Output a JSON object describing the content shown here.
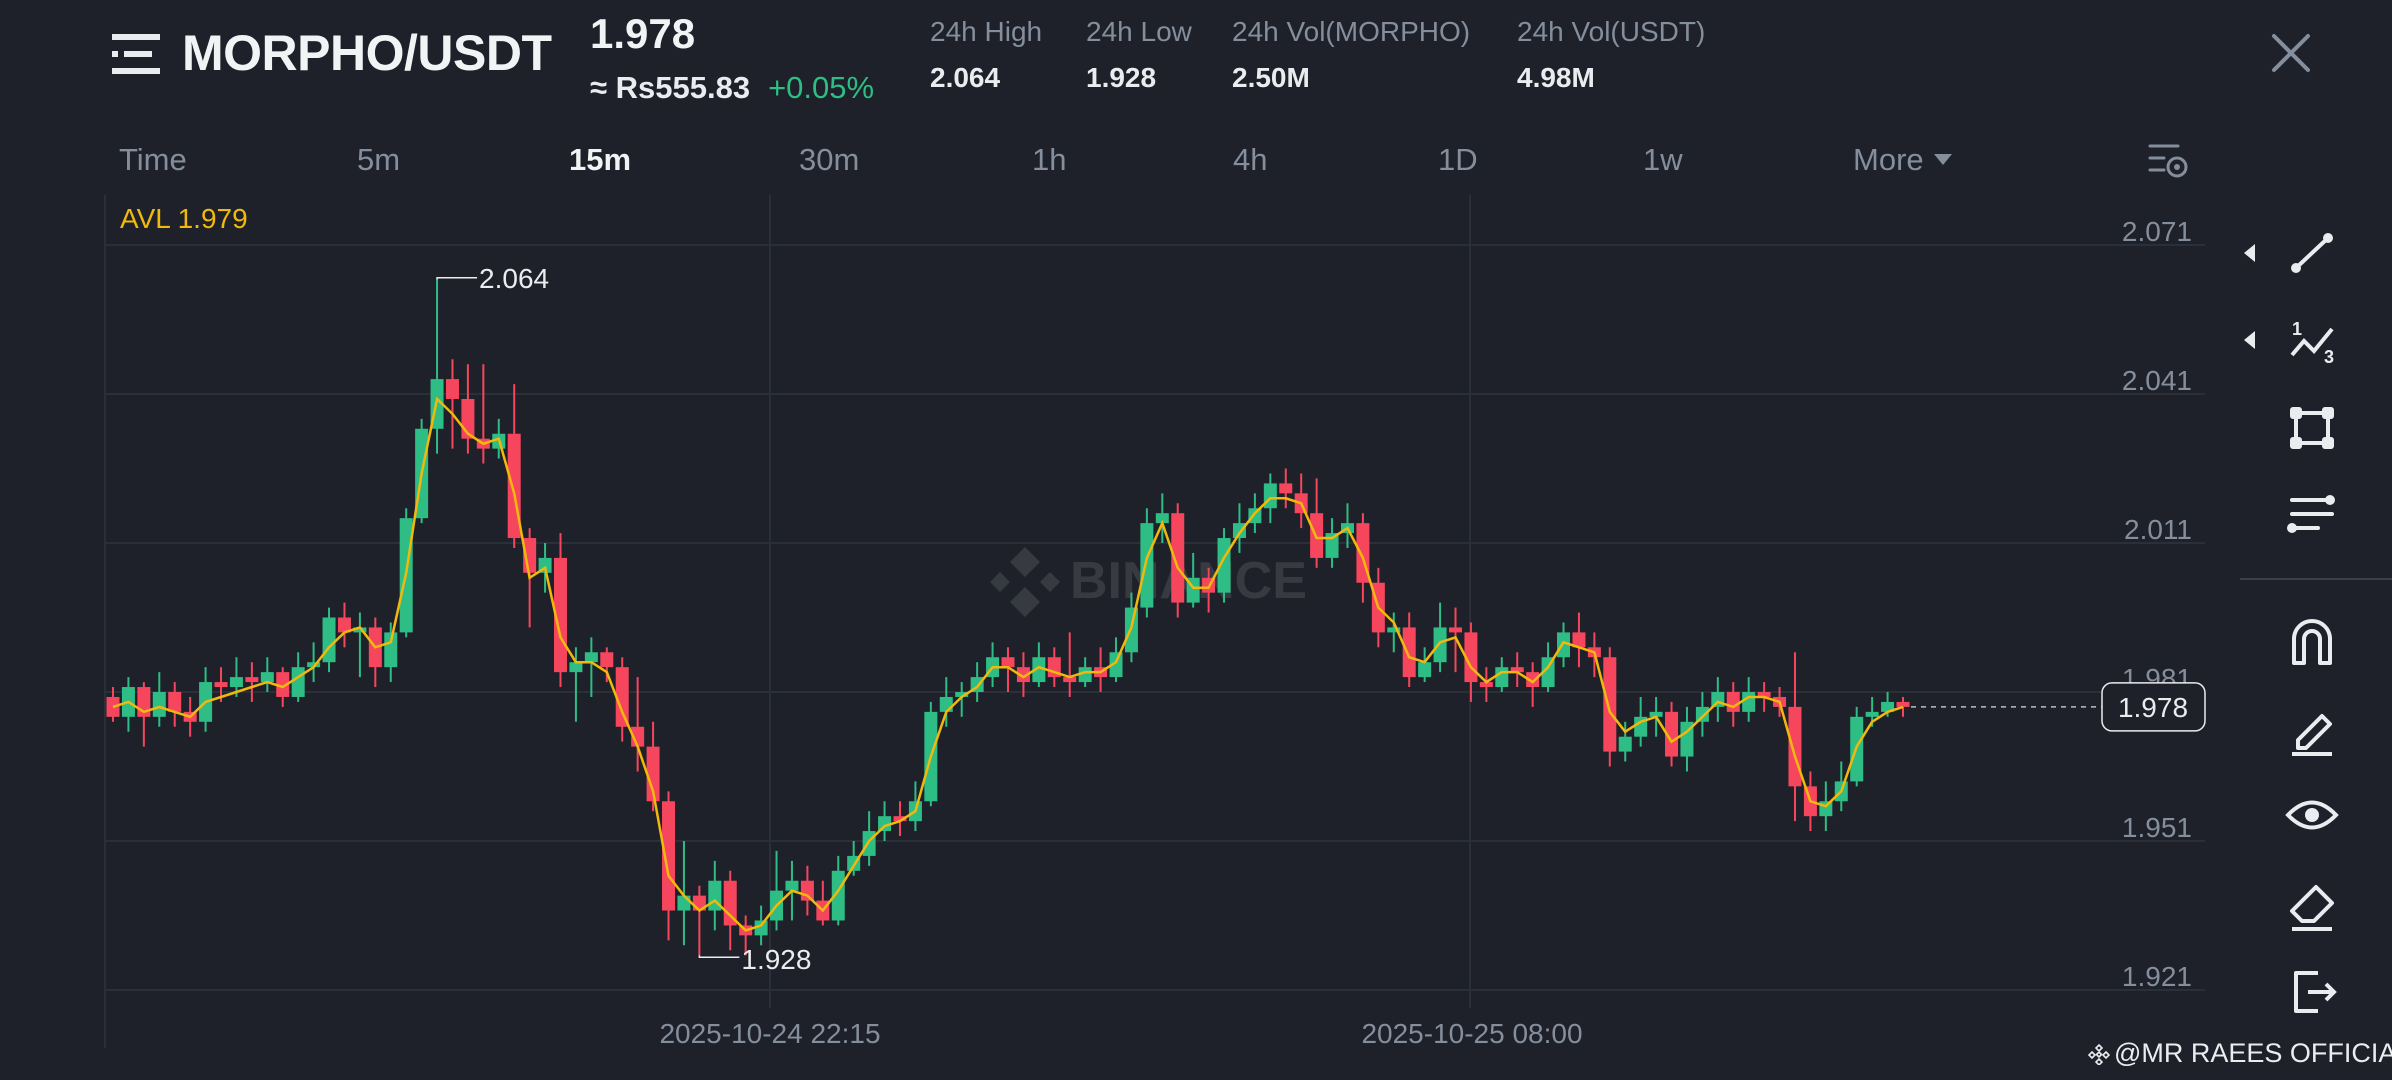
{
  "header": {
    "pair": "MORPHO/USDT",
    "last_price": "1.978",
    "fiat_price": "≈ Rs555.83",
    "change": "+0.05%",
    "stats": [
      {
        "label": "24h High",
        "value": "2.064"
      },
      {
        "label": "24h Low",
        "value": "1.928"
      },
      {
        "label": "24h Vol(MORPHO)",
        "value": "2.50M"
      },
      {
        "label": "24h Vol(USDT)",
        "value": "4.98M"
      }
    ]
  },
  "tabs": [
    "Time",
    "5m",
    "15m",
    "30m",
    "1h",
    "4h",
    "1D",
    "1w",
    "More"
  ],
  "active_tab": "15m",
  "avl_label": "AVL 1.979",
  "watermark": "BINANCE",
  "credit": "@MR RAEES OFFICIAL",
  "colors": {
    "bg": "#1e2129",
    "up": "#2ebd85",
    "down": "#f6465d",
    "ma": "#f0b90b",
    "grid": "#2b2f38",
    "axis_text": "#848e9c"
  },
  "icons": [
    "trend-line-icon",
    "fibonacci-icon",
    "rectangle-icon",
    "parallel-lines-icon",
    "magnet-icon",
    "pencil-icon",
    "eye-icon",
    "eraser-icon",
    "exit-icon"
  ],
  "chart_data": {
    "type": "candlestick",
    "interval": "15m",
    "y_ticks": [
      "2.071",
      "2.041",
      "2.011",
      "1.981",
      "1.951",
      "1.921"
    ],
    "ylim": [
      1.921,
      2.071
    ],
    "x_labels": [
      "2025-10-24 22:15",
      "2025-10-25 08:00"
    ],
    "high_marker": "2.064",
    "low_marker": "1.928",
    "current_price": "1.978",
    "candles": [
      [
        1.98,
        1.976,
        1.982,
        1.975
      ],
      [
        1.976,
        1.982,
        1.984,
        1.973
      ],
      [
        1.982,
        1.976,
        1.983,
        1.97
      ],
      [
        1.976,
        1.981,
        1.985,
        1.974
      ],
      [
        1.981,
        1.977,
        1.983,
        1.974
      ],
      [
        1.977,
        1.975,
        1.98,
        1.972
      ],
      [
        1.975,
        1.983,
        1.986,
        1.973
      ],
      [
        1.983,
        1.982,
        1.986,
        1.979
      ],
      [
        1.982,
        1.984,
        1.988,
        1.98
      ],
      [
        1.984,
        1.983,
        1.987,
        1.979
      ],
      [
        1.983,
        1.985,
        1.988,
        1.981
      ],
      [
        1.985,
        1.98,
        1.986,
        1.978
      ],
      [
        1.98,
        1.986,
        1.989,
        1.979
      ],
      [
        1.986,
        1.987,
        1.991,
        1.983
      ],
      [
        1.987,
        1.996,
        1.998,
        1.985
      ],
      [
        1.996,
        1.993,
        1.999,
        1.99
      ],
      [
        1.993,
        1.994,
        1.997,
        1.984
      ],
      [
        1.994,
        1.986,
        1.996,
        1.982
      ],
      [
        1.986,
        1.993,
        1.995,
        1.983
      ],
      [
        1.993,
        2.016,
        2.018,
        1.992
      ],
      [
        2.016,
        2.034,
        2.036,
        2.015
      ],
      [
        2.034,
        2.044,
        2.064,
        2.029
      ],
      [
        2.044,
        2.04,
        2.048,
        2.03
      ],
      [
        2.04,
        2.032,
        2.047,
        2.029
      ],
      [
        2.032,
        2.03,
        2.047,
        2.027
      ],
      [
        2.03,
        2.033,
        2.036,
        2.028
      ],
      [
        2.033,
        2.012,
        2.043,
        2.01
      ],
      [
        2.012,
        2.005,
        2.014,
        1.994
      ],
      [
        2.005,
        2.008,
        2.011,
        2.001
      ],
      [
        2.008,
        1.985,
        2.013,
        1.982
      ],
      [
        1.985,
        1.987,
        1.99,
        1.975
      ],
      [
        1.987,
        1.989,
        1.992,
        1.98
      ],
      [
        1.989,
        1.986,
        1.99,
        1.983
      ],
      [
        1.986,
        1.974,
        1.988,
        1.971
      ],
      [
        1.974,
        1.97,
        1.984,
        1.965
      ],
      [
        1.97,
        1.959,
        1.975,
        1.957
      ],
      [
        1.959,
        1.937,
        1.961,
        1.931
      ],
      [
        1.937,
        1.94,
        1.951,
        1.93
      ],
      [
        1.94,
        1.937,
        1.942,
        1.928
      ],
      [
        1.937,
        1.943,
        1.947,
        1.933
      ],
      [
        1.943,
        1.934,
        1.945,
        1.929
      ],
      [
        1.934,
        1.932,
        1.936,
        1.928
      ],
      [
        1.932,
        1.935,
        1.938,
        1.93
      ],
      [
        1.935,
        1.941,
        1.949,
        1.933
      ],
      [
        1.941,
        1.943,
        1.947,
        1.935
      ],
      [
        1.943,
        1.939,
        1.946,
        1.936
      ],
      [
        1.939,
        1.935,
        1.943,
        1.934
      ],
      [
        1.935,
        1.945,
        1.948,
        1.934
      ],
      [
        1.945,
        1.948,
        1.951,
        1.944
      ],
      [
        1.948,
        1.953,
        1.957,
        1.946
      ],
      [
        1.953,
        1.956,
        1.959,
        1.951
      ],
      [
        1.956,
        1.955,
        1.959,
        1.952
      ],
      [
        1.955,
        1.959,
        1.963,
        1.953
      ],
      [
        1.959,
        1.977,
        1.979,
        1.958
      ],
      [
        1.977,
        1.98,
        1.984,
        1.974
      ],
      [
        1.98,
        1.981,
        1.983,
        1.976
      ],
      [
        1.981,
        1.984,
        1.987,
        1.979
      ],
      [
        1.984,
        1.988,
        1.991,
        1.982
      ],
      [
        1.988,
        1.986,
        1.99,
        1.981
      ],
      [
        1.986,
        1.983,
        1.989,
        1.98
      ],
      [
        1.983,
        1.988,
        1.991,
        1.982
      ],
      [
        1.988,
        1.984,
        1.99,
        1.982
      ],
      [
        1.984,
        1.983,
        1.993,
        1.98
      ],
      [
        1.983,
        1.986,
        1.988,
        1.982
      ],
      [
        1.986,
        1.984,
        1.99,
        1.981
      ],
      [
        1.984,
        1.989,
        1.992,
        1.983
      ],
      [
        1.989,
        1.998,
        2.001,
        1.987
      ],
      [
        1.998,
        2.015,
        2.018,
        1.996
      ],
      [
        2.015,
        2.017,
        2.021,
        2.011
      ],
      [
        2.017,
        1.999,
        2.019,
        1.996
      ],
      [
        1.999,
        2.004,
        2.009,
        1.998
      ],
      [
        2.004,
        2.001,
        2.006,
        1.997
      ],
      [
        2.001,
        2.012,
        2.014,
        1.999
      ],
      [
        2.012,
        2.015,
        2.019,
        2.009
      ],
      [
        2.015,
        2.018,
        2.021,
        2.013
      ],
      [
        2.018,
        2.023,
        2.025,
        2.015
      ],
      [
        2.023,
        2.021,
        2.026,
        2.018
      ],
      [
        2.021,
        2.017,
        2.025,
        2.014
      ],
      [
        2.017,
        2.008,
        2.024,
        2.006
      ],
      [
        2.008,
        2.013,
        2.016,
        2.006
      ],
      [
        2.013,
        2.015,
        2.019,
        2.01
      ],
      [
        2.015,
        2.003,
        2.017,
        1.999
      ],
      [
        2.003,
        1.993,
        2.006,
        1.99
      ],
      [
        1.993,
        1.994,
        1.997,
        1.989
      ],
      [
        1.994,
        1.984,
        1.997,
        1.982
      ],
      [
        1.984,
        1.987,
        1.99,
        1.983
      ],
      [
        1.987,
        1.994,
        1.999,
        1.985
      ],
      [
        1.994,
        1.993,
        1.998,
        1.985
      ],
      [
        1.993,
        1.983,
        1.995,
        1.979
      ],
      [
        1.983,
        1.982,
        1.986,
        1.979
      ],
      [
        1.982,
        1.986,
        1.988,
        1.981
      ],
      [
        1.986,
        1.985,
        1.989,
        1.982
      ],
      [
        1.985,
        1.982,
        1.987,
        1.978
      ],
      [
        1.982,
        1.988,
        1.991,
        1.981
      ],
      [
        1.988,
        1.993,
        1.995,
        1.986
      ],
      [
        1.993,
        1.99,
        1.997,
        1.986
      ],
      [
        1.99,
        1.988,
        1.993,
        1.984
      ],
      [
        1.988,
        1.969,
        1.99,
        1.966
      ],
      [
        1.969,
        1.972,
        1.975,
        1.967
      ],
      [
        1.972,
        1.976,
        1.98,
        1.97
      ],
      [
        1.976,
        1.977,
        1.98,
        1.972
      ],
      [
        1.977,
        1.968,
        1.979,
        1.966
      ],
      [
        1.968,
        1.975,
        1.978,
        1.965
      ],
      [
        1.975,
        1.978,
        1.981,
        1.972
      ],
      [
        1.978,
        1.981,
        1.984,
        1.975
      ],
      [
        1.981,
        1.977,
        1.983,
        1.974
      ],
      [
        1.977,
        1.981,
        1.984,
        1.975
      ],
      [
        1.981,
        1.98,
        1.983,
        1.977
      ],
      [
        1.98,
        1.978,
        1.982,
        1.976
      ],
      [
        1.978,
        1.962,
        1.989,
        1.955
      ],
      [
        1.962,
        1.956,
        1.965,
        1.953
      ],
      [
        1.956,
        1.959,
        1.963,
        1.953
      ],
      [
        1.959,
        1.963,
        1.967,
        1.957
      ],
      [
        1.963,
        1.976,
        1.978,
        1.962
      ],
      [
        1.976,
        1.977,
        1.98,
        1.974
      ],
      [
        1.977,
        1.979,
        1.981,
        1.976
      ],
      [
        1.979,
        1.978,
        1.98,
        1.976
      ]
    ],
    "ma": [
      1.978,
      1.979,
      1.977,
      1.978,
      1.977,
      1.976,
      1.979,
      1.98,
      1.981,
      1.982,
      1.983,
      1.982,
      1.984,
      1.986,
      1.99,
      1.993,
      1.994,
      1.99,
      1.991,
      2.005,
      2.025,
      2.04,
      2.037,
      2.033,
      2.031,
      2.032,
      2.021,
      2.004,
      2.006,
      1.992,
      1.987,
      1.987,
      1.985,
      1.977,
      1.97,
      1.961,
      1.944,
      1.94,
      1.937,
      1.939,
      1.936,
      1.933,
      1.934,
      1.938,
      1.941,
      1.94,
      1.937,
      1.941,
      1.946,
      1.951,
      1.954,
      1.955,
      1.957,
      1.968,
      1.977,
      1.98,
      1.982,
      1.986,
      1.986,
      1.984,
      1.986,
      1.985,
      1.984,
      1.985,
      1.985,
      1.987,
      1.994,
      2.008,
      2.015,
      2.006,
      2.002,
      2.002,
      2.008,
      2.013,
      2.017,
      2.02,
      2.02,
      2.019,
      2.012,
      2.012,
      2.014,
      2.008,
      1.998,
      1.995,
      1.988,
      1.987,
      1.991,
      1.992,
      1.986,
      1.983,
      1.985,
      1.985,
      1.983,
      1.986,
      1.991,
      1.99,
      1.989,
      1.977,
      1.973,
      1.975,
      1.976,
      1.971,
      1.973,
      1.976,
      1.979,
      1.978,
      1.98,
      1.98,
      1.979,
      1.968,
      1.959,
      1.958,
      1.961,
      1.97,
      1.975,
      1.977,
      1.978
    ]
  }
}
